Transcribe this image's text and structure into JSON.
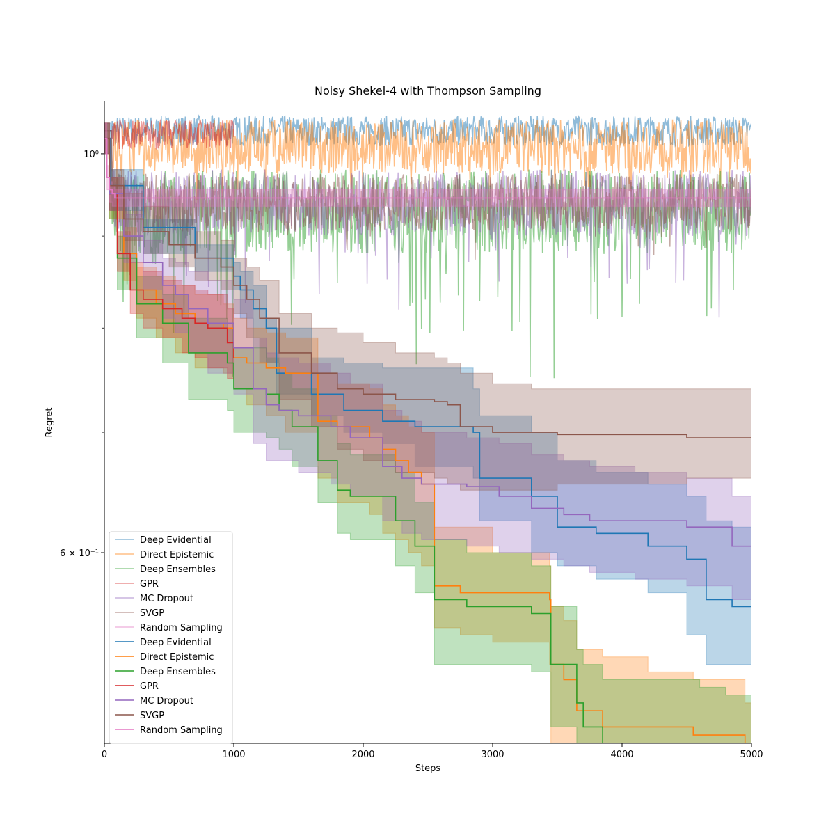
{
  "chart_data": {
    "type": "line",
    "title": "Noisy Shekel-4 with Thompson Sampling",
    "xlabel": "Steps",
    "ylabel": "Regret",
    "xlim": [
      0,
      5000
    ],
    "ylim": [
      0.47,
      1.07
    ],
    "yscale": "log",
    "grid": false,
    "legend_position": "bottom-left",
    "x_ticks": [
      0,
      1000,
      2000,
      3000,
      4000,
      5000
    ],
    "x_tick_labels": [
      "0",
      "1000",
      "2000",
      "3000",
      "4000",
      "5000"
    ],
    "y_ticks_major": [
      0.6,
      1.0
    ],
    "y_tick_labels": [
      "6 × 10⁻¹",
      "10⁰"
    ],
    "y_ticks_minor": [
      0.5,
      0.7,
      0.8,
      0.9
    ],
    "series": [
      {
        "name": "Deep Evidential",
        "color": "#1f77b4",
        "kind": "band",
        "x": [
          0,
          50,
          300,
          700,
          1000,
          1050,
          1150,
          1250,
          1330,
          1600,
          1850,
          2150,
          2400,
          2850,
          2900,
          3300,
          3500,
          3800,
          4200,
          4500,
          4650,
          4850,
          5000
        ],
        "y": [
          1.02,
          0.96,
          0.91,
          0.875,
          0.855,
          0.84,
          0.82,
          0.8,
          0.755,
          0.735,
          0.72,
          0.71,
          0.705,
          0.7,
          0.66,
          0.645,
          0.62,
          0.615,
          0.605,
          0.595,
          0.565,
          0.56,
          0.56
        ],
        "lower": [
          1.0,
          0.93,
          0.88,
          0.86,
          0.84,
          0.81,
          0.78,
          0.765,
          0.735,
          0.715,
          0.7,
          0.69,
          0.67,
          0.66,
          0.625,
          0.6,
          0.59,
          0.58,
          0.57,
          0.54,
          0.52,
          0.52,
          0.52
        ],
        "upper": [
          1.04,
          0.98,
          0.92,
          0.89,
          0.87,
          0.86,
          0.845,
          0.81,
          0.8,
          0.77,
          0.765,
          0.76,
          0.76,
          0.74,
          0.715,
          0.7,
          0.675,
          0.665,
          0.655,
          0.645,
          0.625,
          0.62,
          0.62
        ]
      },
      {
        "name": "Direct Epistemic",
        "color": "#ff7f0e",
        "kind": "band",
        "x": [
          0,
          40,
          150,
          250,
          400,
          550,
          700,
          920,
          1000,
          1100,
          1250,
          1400,
          1650,
          1800,
          2050,
          2150,
          2250,
          2350,
          2450,
          2550,
          2750,
          3000,
          3440,
          3450,
          3550,
          3650,
          3850,
          4200,
          4550,
          4900,
          4950,
          5000
        ],
        "y": [
          1.02,
          0.95,
          0.88,
          0.84,
          0.825,
          0.815,
          0.805,
          0.8,
          0.77,
          0.765,
          0.76,
          0.755,
          0.71,
          0.705,
          0.695,
          0.685,
          0.675,
          0.665,
          0.655,
          0.575,
          0.57,
          0.57,
          0.565,
          0.52,
          0.51,
          0.49,
          0.48,
          0.48,
          0.475,
          0.475,
          0.46,
          0.46
        ],
        "lower": [
          1.0,
          0.92,
          0.85,
          0.81,
          0.79,
          0.775,
          0.76,
          0.755,
          0.74,
          0.725,
          0.715,
          0.7,
          0.66,
          0.64,
          0.63,
          0.615,
          0.61,
          0.6,
          0.59,
          0.545,
          0.54,
          0.535,
          0.52,
          0.47,
          0.465,
          0.455,
          0.45,
          0.44,
          0.44,
          0.44,
          0.44,
          0.44
        ],
        "upper": [
          1.04,
          0.97,
          0.91,
          0.865,
          0.855,
          0.845,
          0.835,
          0.825,
          0.81,
          0.8,
          0.795,
          0.79,
          0.755,
          0.745,
          0.74,
          0.725,
          0.715,
          0.705,
          0.7,
          0.62,
          0.62,
          0.6,
          0.59,
          0.56,
          0.55,
          0.53,
          0.525,
          0.515,
          0.51,
          0.51,
          0.495,
          0.495
        ]
      },
      {
        "name": "Deep Ensembles",
        "color": "#2ca02c",
        "kind": "band",
        "x": [
          0,
          40,
          100,
          250,
          450,
          650,
          950,
          1000,
          1250,
          1350,
          1450,
          1650,
          1800,
          1900,
          2250,
          2400,
          2550,
          2800,
          3300,
          3450,
          3650,
          3700,
          3850,
          4200,
          4600,
          4800,
          5000
        ],
        "y": [
          1.02,
          0.95,
          0.875,
          0.825,
          0.805,
          0.775,
          0.765,
          0.74,
          0.735,
          0.72,
          0.705,
          0.675,
          0.65,
          0.645,
          0.625,
          0.605,
          0.565,
          0.56,
          0.555,
          0.52,
          0.495,
          0.48,
          0.465,
          0.465,
          0.46,
          0.455,
          0.455
        ],
        "lower": [
          1.0,
          0.92,
          0.84,
          0.79,
          0.765,
          0.73,
          0.72,
          0.7,
          0.695,
          0.685,
          0.67,
          0.64,
          0.615,
          0.61,
          0.59,
          0.57,
          0.52,
          0.52,
          0.515,
          0.48,
          0.46,
          0.45,
          0.45,
          0.45,
          0.45,
          0.45,
          0.45
        ],
        "upper": [
          1.04,
          0.97,
          0.9,
          0.855,
          0.835,
          0.81,
          0.8,
          0.78,
          0.77,
          0.755,
          0.74,
          0.715,
          0.69,
          0.68,
          0.665,
          0.64,
          0.61,
          0.6,
          0.59,
          0.56,
          0.53,
          0.52,
          0.51,
          0.51,
          0.505,
          0.5,
          0.5
        ]
      },
      {
        "name": "GPR",
        "color": "#d62728",
        "kind": "band",
        "x": [
          0,
          40,
          100,
          200,
          300,
          450,
          600,
          700,
          800,
          950,
          1000
        ],
        "y": [
          1.02,
          0.95,
          0.88,
          0.84,
          0.83,
          0.82,
          0.81,
          0.805,
          0.8,
          0.785,
          0.77
        ],
        "lower": [
          1.0,
          0.93,
          0.86,
          0.815,
          0.8,
          0.79,
          0.775,
          0.77,
          0.76,
          0.75,
          0.74
        ],
        "upper": [
          1.04,
          0.97,
          0.905,
          0.87,
          0.86,
          0.85,
          0.845,
          0.84,
          0.835,
          0.82,
          0.81
        ]
      },
      {
        "name": "MC Dropout",
        "color": "#9467bd",
        "kind": "band",
        "x": [
          0,
          40,
          150,
          300,
          450,
          550,
          650,
          800,
          1000,
          1150,
          1250,
          1350,
          1500,
          1750,
          1900,
          2150,
          2300,
          2450,
          2800,
          3050,
          3300,
          3550,
          3750,
          4100,
          4500,
          4850,
          5000
        ],
        "y": [
          1.02,
          0.95,
          0.9,
          0.87,
          0.845,
          0.835,
          0.82,
          0.805,
          0.78,
          0.74,
          0.725,
          0.72,
          0.715,
          0.705,
          0.695,
          0.67,
          0.66,
          0.655,
          0.653,
          0.645,
          0.635,
          0.63,
          0.625,
          0.625,
          0.62,
          0.605,
          0.605
        ],
        "lower": [
          1.0,
          0.93,
          0.87,
          0.84,
          0.81,
          0.795,
          0.775,
          0.755,
          0.735,
          0.69,
          0.675,
          0.675,
          0.665,
          0.655,
          0.645,
          0.625,
          0.615,
          0.61,
          0.605,
          0.6,
          0.595,
          0.59,
          0.585,
          0.58,
          0.575,
          0.565,
          0.565
        ],
        "upper": [
          1.04,
          0.97,
          0.925,
          0.895,
          0.875,
          0.87,
          0.86,
          0.85,
          0.83,
          0.79,
          0.775,
          0.77,
          0.765,
          0.755,
          0.745,
          0.72,
          0.71,
          0.7,
          0.695,
          0.69,
          0.68,
          0.675,
          0.67,
          0.665,
          0.66,
          0.645,
          0.645
        ]
      },
      {
        "name": "SVGP",
        "color": "#8c564b",
        "kind": "band",
        "x": [
          0,
          40,
          150,
          300,
          500,
          700,
          900,
          1000,
          1100,
          1200,
          1350,
          1600,
          1800,
          2000,
          2250,
          2550,
          2650,
          2750,
          3000,
          3300,
          3500,
          4000,
          4500,
          5000
        ],
        "y": [
          1.02,
          0.96,
          0.92,
          0.905,
          0.89,
          0.875,
          0.865,
          0.845,
          0.83,
          0.81,
          0.775,
          0.755,
          0.74,
          0.735,
          0.73,
          0.728,
          0.725,
          0.705,
          0.7,
          0.7,
          0.698,
          0.698,
          0.695,
          0.695
        ],
        "lower": [
          1.0,
          0.93,
          0.895,
          0.88,
          0.865,
          0.85,
          0.84,
          0.815,
          0.79,
          0.765,
          0.73,
          0.705,
          0.685,
          0.675,
          0.665,
          0.66,
          0.655,
          0.65,
          0.65,
          0.65,
          0.655,
          0.655,
          0.66,
          0.66
        ],
        "upper": [
          1.04,
          0.98,
          0.95,
          0.935,
          0.92,
          0.905,
          0.895,
          0.875,
          0.865,
          0.85,
          0.815,
          0.8,
          0.795,
          0.785,
          0.775,
          0.77,
          0.765,
          0.755,
          0.745,
          0.74,
          0.74,
          0.74,
          0.74,
          0.74
        ]
      },
      {
        "name": "Random Sampling",
        "color": "#e377c2",
        "kind": "band",
        "x": [
          0,
          20,
          40,
          60,
          80,
          5000
        ],
        "y": [
          1.02,
          0.97,
          0.955,
          0.95,
          0.945,
          0.945
        ],
        "lower": [
          1.0,
          0.955,
          0.94,
          0.935,
          0.935,
          0.935
        ],
        "upper": [
          1.04,
          0.985,
          0.965,
          0.96,
          0.955,
          0.955
        ]
      }
    ],
    "noisy_traces": [
      {
        "name": "Deep Evidential",
        "color": "#1f77b4",
        "x_range": [
          0,
          5000
        ],
        "base": 1.03,
        "amp": 0.02,
        "dips": 0.0
      },
      {
        "name": "Direct Epistemic",
        "color": "#ff7f0e",
        "x_range": [
          0,
          5000
        ],
        "base": 1.01,
        "amp": 0.035,
        "dips": 0.05
      },
      {
        "name": "Deep Ensembles",
        "color": "#2ca02c",
        "x_range": [
          0,
          5000
        ],
        "base": 0.93,
        "amp": 0.05,
        "dips": 0.15
      },
      {
        "name": "GPR",
        "color": "#d62728",
        "x_range": [
          0,
          1000
        ],
        "base": 1.025,
        "amp": 0.02,
        "dips": 0.0
      },
      {
        "name": "MC Dropout",
        "color": "#9467bd",
        "x_range": [
          0,
          5000
        ],
        "base": 0.94,
        "amp": 0.04,
        "dips": 0.1
      },
      {
        "name": "SVGP",
        "color": "#8c564b",
        "x_range": [
          0,
          5000
        ],
        "base": 0.94,
        "amp": 0.035,
        "dips": 0.04
      }
    ]
  },
  "legend": {
    "items": [
      {
        "label": "Deep Evidential",
        "color": "#1f77b4",
        "faded": true
      },
      {
        "label": "Direct Epistemic",
        "color": "#ff7f0e",
        "faded": true
      },
      {
        "label": "Deep Ensembles",
        "color": "#2ca02c",
        "faded": true
      },
      {
        "label": "GPR",
        "color": "#d62728",
        "faded": true
      },
      {
        "label": "MC Dropout",
        "color": "#9467bd",
        "faded": true
      },
      {
        "label": "SVGP",
        "color": "#8c564b",
        "faded": true
      },
      {
        "label": "Random Sampling",
        "color": "#e377c2",
        "faded": true
      },
      {
        "label": "Deep Evidential",
        "color": "#1f77b4",
        "faded": false
      },
      {
        "label": "Direct Epistemic",
        "color": "#ff7f0e",
        "faded": false
      },
      {
        "label": "Deep Ensembles",
        "color": "#2ca02c",
        "faded": false
      },
      {
        "label": "GPR",
        "color": "#d62728",
        "faded": false
      },
      {
        "label": "MC Dropout",
        "color": "#9467bd",
        "faded": false
      },
      {
        "label": "SVGP",
        "color": "#8c564b",
        "faded": false
      },
      {
        "label": "Random Sampling",
        "color": "#e377c2",
        "faded": false
      }
    ]
  }
}
